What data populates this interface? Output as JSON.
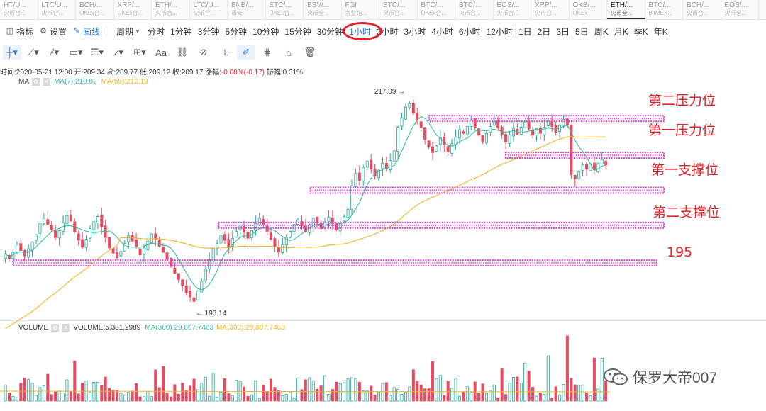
{
  "symbols": [
    {
      "pair": "HT/U...",
      "exchange": "火币合..."
    },
    {
      "pair": "LTC/U...",
      "exchange": "火币合..."
    },
    {
      "pair": "BCH/...",
      "exchange": "OKEx合..."
    },
    {
      "pair": "XRP/...",
      "exchange": "OKEx合..."
    },
    {
      "pair": "ETH/...",
      "exchange": "火币合..."
    },
    {
      "pair": "LTC/U...",
      "exchange": "火币合..."
    },
    {
      "pair": "BNB/...",
      "exchange": "币安"
    },
    {
      "pair": "ETC/...",
      "exchange": "OKEx合..."
    },
    {
      "pair": "BSV/...",
      "exchange": "火币全..."
    },
    {
      "pair": "FGI",
      "exchange": "贪婪指..."
    },
    {
      "pair": "BTC/...",
      "exchange": "火币合..."
    },
    {
      "pair": "BTC/...",
      "exchange": "OKEx合..."
    },
    {
      "pair": "BTC/...",
      "exchange": "火币合..."
    },
    {
      "pair": "EOS/...",
      "exchange": "火币合..."
    },
    {
      "pair": "XRP/...",
      "exchange": "火币合..."
    },
    {
      "pair": "OKB/...",
      "exchange": "OKEx"
    },
    {
      "pair": "ETH/...",
      "exchange": "火币全..."
    },
    {
      "pair": "BTC/...",
      "exchange": "BitMEX..."
    },
    {
      "pair": "BCH/...",
      "exchange": "火币合..."
    },
    {
      "pair": "EOS/...",
      "exchange": "火币全..."
    }
  ],
  "active_symbol_index": 16,
  "toolbar": {
    "indicator": "指标",
    "settings": "设置",
    "draw": "画线",
    "period_label": "周期",
    "periods": [
      "分时",
      "1分钟",
      "3分钟",
      "5分钟",
      "10分钟",
      "15分钟",
      "30分钟",
      "1小时",
      "2小时",
      "3小时",
      "4小时",
      "6小时",
      "12小时",
      "1日",
      "2日",
      "3日",
      "5日",
      "周K",
      "月K",
      "季K",
      "年K"
    ],
    "active_period": "1小时"
  },
  "drawing_tools": [
    "crosshair",
    "trend-line",
    "parallel-lines",
    "rectangle",
    "horizontal-lines",
    "wave",
    "measure",
    "text",
    "fib",
    "eraser-brush",
    "ruler",
    "pen",
    "bars-pattern",
    "lock",
    "trash"
  ],
  "info": {
    "time_label": "时间:",
    "time": "2020-05-21 12:00",
    "open_label": "开:",
    "open": "209.34",
    "high_label": "高:",
    "high": "209.77",
    "low_label": "低:",
    "low": "209.12",
    "close_label": "收:",
    "close": "209.17",
    "change_label": "涨幅:",
    "change": "-0.08%(-0.17)",
    "amp_label": "振幅:",
    "amp": "0.31%"
  },
  "ma_legend": {
    "name": "MA",
    "ma7": "MA(7):210.02",
    "ma55": "MA(55):212.19"
  },
  "volume_legend": {
    "name": "VOLUME",
    "volume": "VOLUME:5,381.2989",
    "ma300a": "MA(300):29,807.7463",
    "ma300b": "MA(300):29,807.7463"
  },
  "colors": {
    "up": "#26a69a",
    "down": "#e84a5f",
    "ma7": "#3cb9a0",
    "ma55": "#f5b324",
    "zone": "#d44fd0",
    "annotation": "#e8202a",
    "active": "#2f7bd9"
  },
  "annotations": [
    {
      "text": "第二压力位",
      "level": 214.5
    },
    {
      "text": "第一压力位",
      "level": 210.3
    },
    {
      "text": "第一支撑位",
      "level": 206.3
    },
    {
      "text": "第二支撑位",
      "level": 202.3
    },
    {
      "text": "195",
      "level": 198.0
    }
  ],
  "watermark": "保罗大帝007",
  "chart_data": {
    "type": "candlestick",
    "price_range": [
      190,
      220
    ],
    "high_label": "217.09",
    "low_label": "193.14",
    "high_value": 217.09,
    "low_value": 193.14,
    "zones": [
      {
        "level": 214.5,
        "x_start": 0.56,
        "x_end": 0.83
      },
      {
        "level": 210.3,
        "x_start": 0.66,
        "x_end": 0.83
      },
      {
        "level": 206.3,
        "x_start": 0.405,
        "x_end": 0.83
      },
      {
        "level": 202.3,
        "x_start": 0.285,
        "x_end": 0.83
      },
      {
        "level": 198.0,
        "x_start": 0.017,
        "x_end": 0.82
      }
    ],
    "candle_count": 155,
    "close_series": [
      199,
      198.5,
      199.2,
      200.1,
      199.4,
      198.8,
      199.6,
      200.4,
      201.2,
      202.5,
      203.1,
      202.4,
      201.8,
      200.9,
      201.7,
      202.6,
      203.4,
      202.8,
      201.5,
      200.6,
      199.8,
      200.7,
      201.9,
      202.7,
      203.3,
      202.1,
      200.9,
      199.7,
      199.1,
      198.6,
      199.3,
      200.2,
      201.1,
      200.5,
      199.8,
      198.9,
      199.6,
      200.5,
      201.3,
      200.7,
      199.9,
      199.2,
      198.4,
      197.6,
      196.8,
      196.1,
      195.4,
      194.6,
      194.1,
      193.6,
      194.8,
      195.9,
      197.3,
      198.4,
      199.6,
      200.2,
      201.1,
      200.6,
      199.9,
      200.8,
      201.6,
      202.2,
      201.5,
      200.8,
      201.7,
      202.5,
      203.1,
      202.4,
      201.6,
      200.7,
      199.9,
      199.2,
      200.1,
      200.9,
      201.6,
      202.4,
      202.9,
      202.2,
      201.5,
      202.3,
      203.1,
      202.6,
      201.9,
      202.7,
      203.2,
      202.5,
      201.8,
      202.6,
      203.3,
      204.1,
      206.8,
      208.2,
      207.4,
      208.9,
      209.6,
      208.7,
      207.9,
      208.6,
      209.4,
      208.8,
      209.7,
      210.8,
      213.5,
      214.6,
      215.8,
      216.2,
      215.1,
      214.3,
      213.5,
      212.1,
      211.3,
      210.6,
      211.4,
      212.3,
      211.5,
      210.7,
      211.6,
      212.4,
      213.2,
      212.8,
      213.6,
      214.3,
      213.5,
      212.6,
      211.9,
      212.8,
      213.6,
      214.2,
      213.4,
      212.7,
      211.8,
      212.6,
      213.4,
      212.7,
      213.5,
      214.1,
      213.3,
      212.6,
      213.4,
      212.8,
      213.5,
      214.2,
      213.6,
      212.9,
      213.7,
      214.4,
      213.8,
      208.1,
      207.6,
      208.4,
      209.2,
      208.7,
      209.3,
      208.6,
      209.4,
      209.8,
      209.17
    ],
    "ma7_series_note": "",
    "ma55_range": [
      190.5,
      211.0
    ],
    "volume_spike_index": 146
  }
}
